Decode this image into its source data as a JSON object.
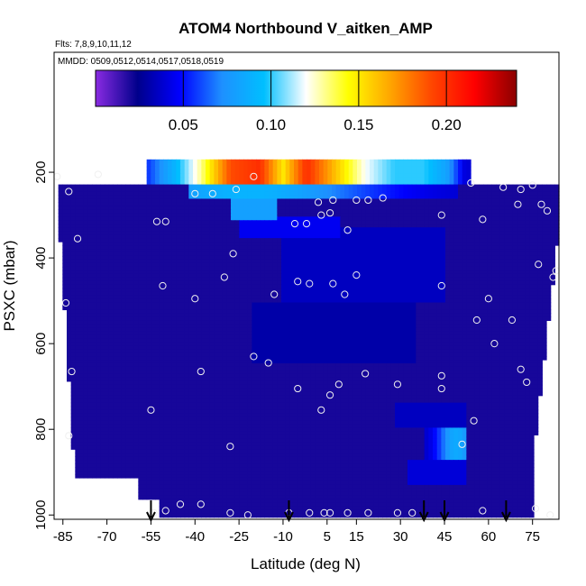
{
  "chart_data": {
    "type": "heatmap",
    "title": "ATOM4 Northbound V_aitken_AMP",
    "notes": [
      "Flts: 7,8,9,10,11,12",
      "MMDD: 0509,0512,0514,0517,0518,0519"
    ],
    "xlabel": "Latitude (deg N)",
    "ylabel": "PSXC (mbar)",
    "xlim": [
      -88,
      84
    ],
    "ylim": [
      1010,
      -80
    ],
    "x_ticks": [
      -85,
      -70,
      -55,
      -40,
      -25,
      -10,
      5,
      15,
      30,
      45,
      60,
      75
    ],
    "y_ticks": [
      200,
      400,
      600,
      800,
      1000
    ],
    "colorbar": {
      "range": [
        0,
        0.24
      ],
      "ticks": [
        0.05,
        0.1,
        0.15,
        0.2
      ],
      "colors": [
        "#8a2be2",
        "#00008b",
        "#0000ff",
        "#1e90ff",
        "#00bfff",
        "#ffffff",
        "#ffff00",
        "#ffa500",
        "#ff4500",
        "#ff0000",
        "#8b0000"
      ]
    },
    "field": {
      "background": 0.02,
      "features": [
        {
          "lat": [
            -58,
            54
          ],
          "p": [
            170,
            230
          ],
          "profile": [
            [
              -58,
              0.05
            ],
            [
              -47,
              0.09
            ],
            [
              -38,
              0.13
            ],
            [
              -28,
              0.19
            ],
            [
              -18,
              0.2
            ],
            [
              -10,
              0.15
            ],
            [
              -2,
              0.2
            ],
            [
              8,
              0.16
            ],
            [
              18,
              0.12
            ],
            [
              28,
              0.1
            ],
            [
              38,
              0.1
            ],
            [
              46,
              0.08
            ],
            [
              52,
              0.04
            ]
          ]
        },
        {
          "lat": [
            -42,
            50
          ],
          "p": [
            230,
            260
          ],
          "peak": 0.09,
          "center": -22
        },
        {
          "lat": [
            -28,
            -12
          ],
          "p": [
            260,
            310
          ],
          "peak": 0.08
        },
        {
          "lat": [
            -25,
            10
          ],
          "p": [
            300,
            350
          ],
          "peak": 0.045
        },
        {
          "lat": [
            -10,
            45
          ],
          "p": [
            330,
            500
          ],
          "peak": 0.035
        },
        {
          "lat": [
            -20,
            35
          ],
          "p": [
            500,
            650
          ],
          "peak": 0.03
        },
        {
          "lat": [
            28,
            52
          ],
          "p": [
            740,
            800
          ],
          "peak": 0.035
        },
        {
          "lat": [
            38,
            52
          ],
          "p": [
            800,
            870
          ],
          "peak": 0.085,
          "center": 49
        },
        {
          "lat": [
            32,
            52
          ],
          "p": [
            870,
            930
          ],
          "peak": 0.04
        }
      ]
    },
    "samples": [
      [
        -87,
        210
      ],
      [
        -83,
        245
      ],
      [
        -73,
        205
      ],
      [
        -80,
        355
      ],
      [
        -84,
        505
      ],
      [
        -82,
        665
      ],
      [
        -83,
        815
      ],
      [
        -53,
        315
      ],
      [
        -50,
        315
      ],
      [
        -51,
        465
      ],
      [
        -40,
        250
      ],
      [
        -34,
        250
      ],
      [
        -26,
        240
      ],
      [
        -20,
        210
      ],
      [
        -40,
        495
      ],
      [
        -38,
        665
      ],
      [
        -27,
        390
      ],
      [
        -30,
        445
      ],
      [
        -13,
        485
      ],
      [
        -20,
        630
      ],
      [
        -15,
        645
      ],
      [
        -28,
        840
      ],
      [
        -45,
        975
      ],
      [
        -38,
        975
      ],
      [
        -50,
        990
      ],
      [
        -54,
        995
      ],
      [
        -28,
        995
      ],
      [
        -22,
        1000
      ],
      [
        -55,
        755
      ],
      [
        -6,
        320
      ],
      [
        -2,
        320
      ],
      [
        2,
        270
      ],
      [
        3,
        300
      ],
      [
        7,
        265
      ],
      [
        -5,
        455
      ],
      [
        -1,
        460
      ],
      [
        6,
        295
      ],
      [
        7,
        460
      ],
      [
        11,
        485
      ],
      [
        15,
        265
      ],
      [
        19,
        265
      ],
      [
        24,
        260
      ],
      [
        12,
        335
      ],
      [
        15,
        440
      ],
      [
        -5,
        705
      ],
      [
        3,
        755
      ],
      [
        6,
        720
      ],
      [
        9,
        695
      ],
      [
        18,
        670
      ],
      [
        29,
        695
      ],
      [
        44,
        300
      ],
      [
        44,
        465
      ],
      [
        44,
        675
      ],
      [
        44,
        705
      ],
      [
        54,
        225
      ],
      [
        51,
        835
      ],
      [
        55,
        780
      ],
      [
        56,
        545
      ],
      [
        58,
        310
      ],
      [
        60,
        495
      ],
      [
        62,
        600
      ],
      [
        65,
        235
      ],
      [
        71,
        240
      ],
      [
        70,
        275
      ],
      [
        78,
        275
      ],
      [
        75,
        230
      ],
      [
        80,
        290
      ],
      [
        83,
        430
      ],
      [
        77,
        415
      ],
      [
        73,
        690
      ],
      [
        71,
        660
      ],
      [
        68,
        545
      ],
      [
        76,
        985
      ],
      [
        81,
        1000
      ],
      [
        -8,
        995
      ],
      [
        -1,
        995
      ],
      [
        4,
        995
      ],
      [
        6,
        995
      ],
      [
        12,
        995
      ],
      [
        19,
        995
      ],
      [
        29,
        995
      ],
      [
        34,
        995
      ],
      [
        58,
        990
      ],
      [
        82,
        445
      ]
    ],
    "arrows": [
      -55,
      -8,
      38,
      45,
      66
    ]
  }
}
